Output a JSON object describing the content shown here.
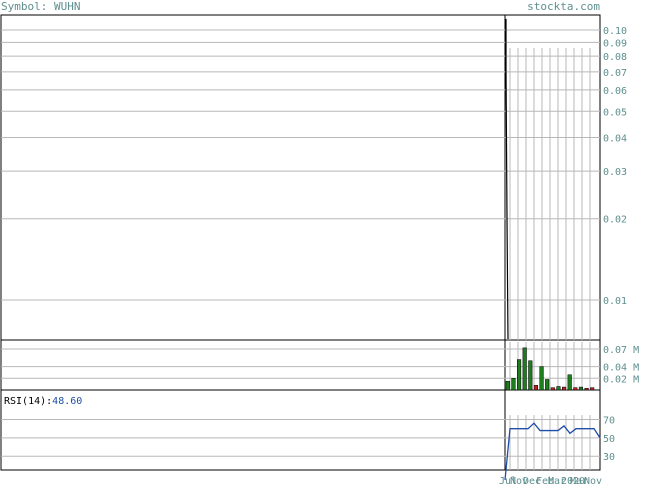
{
  "header": {
    "symbol_label": "Symbol:",
    "symbol": "WUHN",
    "site": "stockta.com"
  },
  "colors": {
    "grid": "#b8b8b8",
    "axis_text": "#5f8f8f",
    "price_line": "#000000",
    "volume_up": "#1e7d1e",
    "volume_down": "#c02020",
    "rsi_line": "#1f4fa8"
  },
  "chart_data": [
    {
      "type": "line",
      "panel": "price",
      "scale": "log",
      "ylim": [
        0.0055,
        0.11
      ],
      "yticks": [
        "0.10",
        "0.09",
        "0.08",
        "0.07",
        "0.06",
        "0.05",
        "0.04",
        "0.03",
        "0.02",
        "0.01"
      ],
      "series": [
        {
          "values": [
            0.11,
            0.072,
            0.0201,
            0.0055
          ]
        }
      ]
    },
    {
      "type": "bar",
      "panel": "volume",
      "ylim": [
        0,
        0.082
      ],
      "yticks": [
        "0.07 M",
        "0.04 M",
        "0.02 M"
      ],
      "values": [
        0.015,
        0.02,
        0.052,
        0.072,
        0.05,
        0.008,
        0.04,
        0.018,
        0.004,
        0.006,
        0.005,
        0.026,
        0.004,
        0.005,
        0.003,
        0.004
      ],
      "direction": [
        "up",
        "up",
        "up",
        "up",
        "up",
        "down",
        "up",
        "up",
        "down",
        "up",
        "down",
        "up",
        "down",
        "up",
        "down",
        "down"
      ]
    },
    {
      "type": "line",
      "panel": "rsi",
      "label": "RSI(14):",
      "value": "48.60",
      "ylim": [
        15,
        100
      ],
      "yticks": [
        "70",
        "50",
        "30"
      ],
      "series": [
        {
          "values": [
            60,
            60,
            60,
            60,
            66,
            58,
            58,
            58,
            58,
            63,
            55,
            60,
            60,
            60,
            60,
            50
          ]
        }
      ]
    }
  ],
  "xaxis": {
    "labels": [
      "Jul",
      "Nov",
      "Dec",
      "Feb",
      "Mar",
      "2020",
      "Mar",
      "Nov"
    ]
  }
}
